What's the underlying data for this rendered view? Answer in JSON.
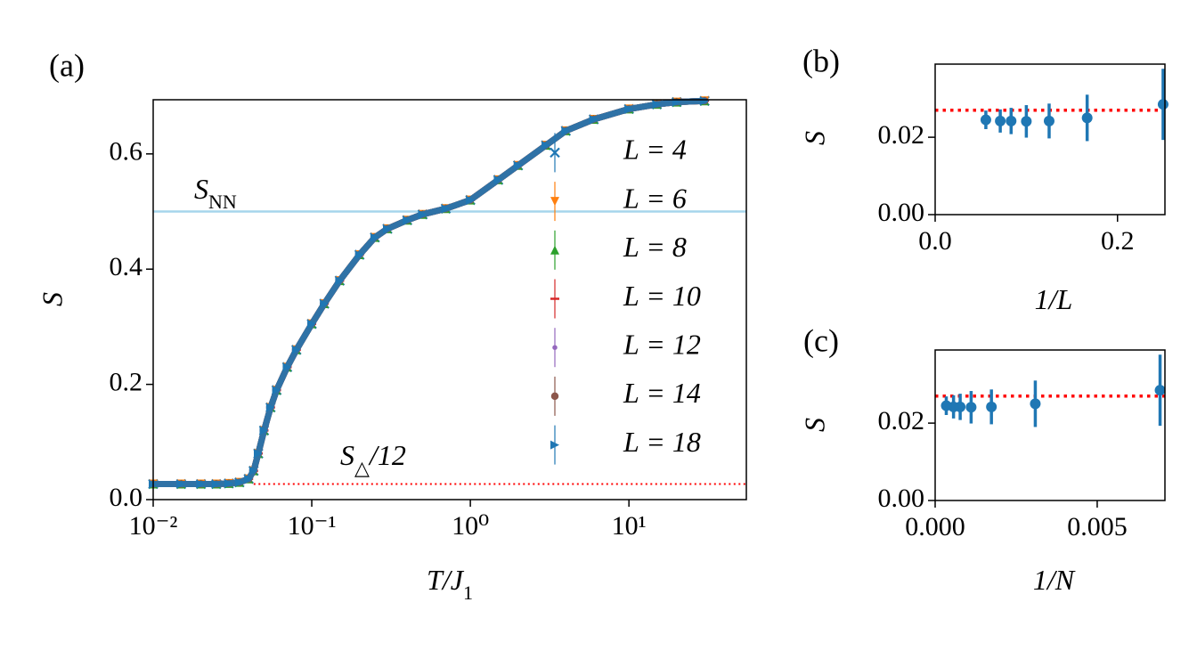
{
  "chart_data": [
    {
      "type": "line",
      "panel_label": "(a)",
      "xlabel": {
        "text": "T/J",
        "subscript": "1"
      },
      "ylabel": "S",
      "xscale": "log",
      "xlim": [
        0.01,
        55
      ],
      "ylim": [
        0,
        0.694
      ],
      "xticks": [
        {
          "value": 0.01,
          "label": "10⁻²"
        },
        {
          "value": 0.1,
          "label": "10⁻¹"
        },
        {
          "value": 1,
          "label": "10⁰"
        },
        {
          "value": 10,
          "label": "10¹"
        }
      ],
      "yticks": [
        {
          "value": 0,
          "label": "0.0"
        },
        0.2,
        0.4,
        0.6
      ],
      "legend": "center right",
      "x": [
        0.01,
        0.015,
        0.02,
        0.025,
        0.03,
        0.035,
        0.04,
        0.043,
        0.046,
        0.05,
        0.055,
        0.06,
        0.07,
        0.08,
        0.1,
        0.12,
        0.15,
        0.2,
        0.25,
        0.3,
        0.4,
        0.5,
        0.7,
        1,
        1.5,
        2,
        3,
        4,
        6,
        10,
        15,
        20,
        30
      ],
      "series": [
        {
          "name": "L = 4",
          "color": "#1f77b4",
          "marker": "x",
          "values": [
            0.027,
            0.027,
            0.027,
            0.027,
            0.028,
            0.03,
            0.036,
            0.05,
            0.08,
            0.12,
            0.16,
            0.19,
            0.23,
            0.26,
            0.305,
            0.34,
            0.38,
            0.425,
            0.455,
            0.47,
            0.485,
            0.495,
            0.505,
            0.52,
            0.555,
            0.58,
            0.615,
            0.64,
            0.66,
            0.678,
            0.686,
            0.69,
            0.692
          ]
        },
        {
          "name": "L = 6",
          "color": "#ff7f0e",
          "marker": "v",
          "values": [
            0.027,
            0.027,
            0.027,
            0.027,
            0.028,
            0.03,
            0.036,
            0.05,
            0.08,
            0.12,
            0.16,
            0.19,
            0.23,
            0.26,
            0.305,
            0.34,
            0.38,
            0.425,
            0.455,
            0.47,
            0.485,
            0.495,
            0.505,
            0.52,
            0.555,
            0.58,
            0.615,
            0.64,
            0.66,
            0.678,
            0.686,
            0.69,
            0.692
          ]
        },
        {
          "name": "L = 8",
          "color": "#2ca02c",
          "marker": "^",
          "values": [
            0.027,
            0.027,
            0.027,
            0.027,
            0.028,
            0.03,
            0.036,
            0.05,
            0.08,
            0.12,
            0.16,
            0.19,
            0.23,
            0.26,
            0.305,
            0.34,
            0.38,
            0.425,
            0.455,
            0.47,
            0.485,
            0.495,
            0.505,
            0.52,
            0.555,
            0.58,
            0.615,
            0.64,
            0.66,
            0.678,
            0.686,
            0.69,
            0.692
          ]
        },
        {
          "name": "L = 10",
          "color": "#d62728",
          "marker": "_",
          "values": [
            0.027,
            0.027,
            0.027,
            0.027,
            0.028,
            0.03,
            0.036,
            0.05,
            0.08,
            0.12,
            0.16,
            0.19,
            0.23,
            0.26,
            0.305,
            0.34,
            0.38,
            0.425,
            0.455,
            0.47,
            0.485,
            0.495,
            0.505,
            0.52,
            0.555,
            0.58,
            0.615,
            0.64,
            0.66,
            0.678,
            0.686,
            0.69,
            0.692
          ]
        },
        {
          "name": "L = 12",
          "color": "#9467bd",
          "marker": ".",
          "values": [
            0.027,
            0.027,
            0.027,
            0.027,
            0.028,
            0.03,
            0.036,
            0.05,
            0.08,
            0.12,
            0.16,
            0.19,
            0.23,
            0.26,
            0.305,
            0.34,
            0.38,
            0.425,
            0.455,
            0.47,
            0.485,
            0.495,
            0.505,
            0.52,
            0.555,
            0.58,
            0.615,
            0.64,
            0.66,
            0.678,
            0.686,
            0.69,
            0.692
          ]
        },
        {
          "name": "L = 14",
          "color": "#8c564b",
          "marker": "o",
          "values": [
            0.027,
            0.027,
            0.027,
            0.027,
            0.028,
            0.03,
            0.036,
            0.05,
            0.08,
            0.12,
            0.16,
            0.19,
            0.23,
            0.26,
            0.305,
            0.34,
            0.38,
            0.425,
            0.455,
            0.47,
            0.485,
            0.495,
            0.505,
            0.52,
            0.555,
            0.58,
            0.615,
            0.64,
            0.66,
            0.678,
            0.686,
            0.69,
            0.692
          ]
        },
        {
          "name": "L = 18",
          "color": "#1f77b4",
          "marker": ">",
          "values": [
            0.027,
            0.027,
            0.027,
            0.027,
            0.028,
            0.03,
            0.036,
            0.05,
            0.08,
            0.12,
            0.16,
            0.19,
            0.23,
            0.26,
            0.305,
            0.34,
            0.38,
            0.425,
            0.455,
            0.47,
            0.485,
            0.495,
            0.505,
            0.52,
            0.555,
            0.58,
            0.615,
            0.64,
            0.66,
            0.678,
            0.686,
            0.69,
            0.692
          ]
        }
      ],
      "hlines": [
        {
          "symbol": "S",
          "subscript": "NN",
          "value": 0.5,
          "color": "#a6d5ec",
          "style": "solid"
        },
        {
          "symbol": "S",
          "subscript": "△",
          "suffix": "/12",
          "value": 0.027,
          "xmin": 0.043,
          "color": "#ff0000",
          "style": "dotted"
        }
      ]
    },
    {
      "type": "errorbar",
      "panel_label": "(b)",
      "xlabel": {
        "text": "1/L"
      },
      "ylabel": "S",
      "xlim": [
        0,
        0.252
      ],
      "ylim": [
        0,
        0.0389
      ],
      "xticks": [
        {
          "value": 0,
          "label": "0.0"
        },
        0.2
      ],
      "yticks": [
        {
          "value": 0,
          "label": "0.00"
        },
        0.02
      ],
      "color": "#1f77b4",
      "x": [
        0.25,
        0.1667,
        0.125,
        0.1,
        0.0833,
        0.0714,
        0.0556
      ],
      "values": [
        0.0285,
        0.025,
        0.0242,
        0.0241,
        0.0242,
        0.0242,
        0.0245
      ],
      "errors": [
        0.0092,
        0.006,
        0.0045,
        0.0042,
        0.0034,
        0.003,
        0.0024
      ],
      "hlines": [
        {
          "value": 0.027,
          "color": "#ff0000",
          "style": "dotted"
        }
      ]
    },
    {
      "type": "errorbar",
      "panel_label": "(c)",
      "xlabel": {
        "text": "1/N"
      },
      "ylabel": "S",
      "xlim": [
        0,
        0.00709
      ],
      "ylim": [
        0,
        0.0389
      ],
      "xticks": [
        {
          "value": 0,
          "label": "0.000"
        },
        0.005
      ],
      "yticks": [
        {
          "value": 0,
          "label": "0.00"
        },
        0.02
      ],
      "color": "#1f77b4",
      "x": [
        0.00694,
        0.00309,
        0.001736,
        0.00111,
        0.000772,
        0.000567,
        0.000343
      ],
      "values": [
        0.0285,
        0.025,
        0.0242,
        0.0241,
        0.0242,
        0.0242,
        0.0245
      ],
      "errors": [
        0.0092,
        0.006,
        0.0045,
        0.0042,
        0.0034,
        0.003,
        0.0024
      ],
      "hlines": [
        {
          "value": 0.027,
          "color": "#ff0000",
          "style": "dotted"
        }
      ]
    }
  ]
}
